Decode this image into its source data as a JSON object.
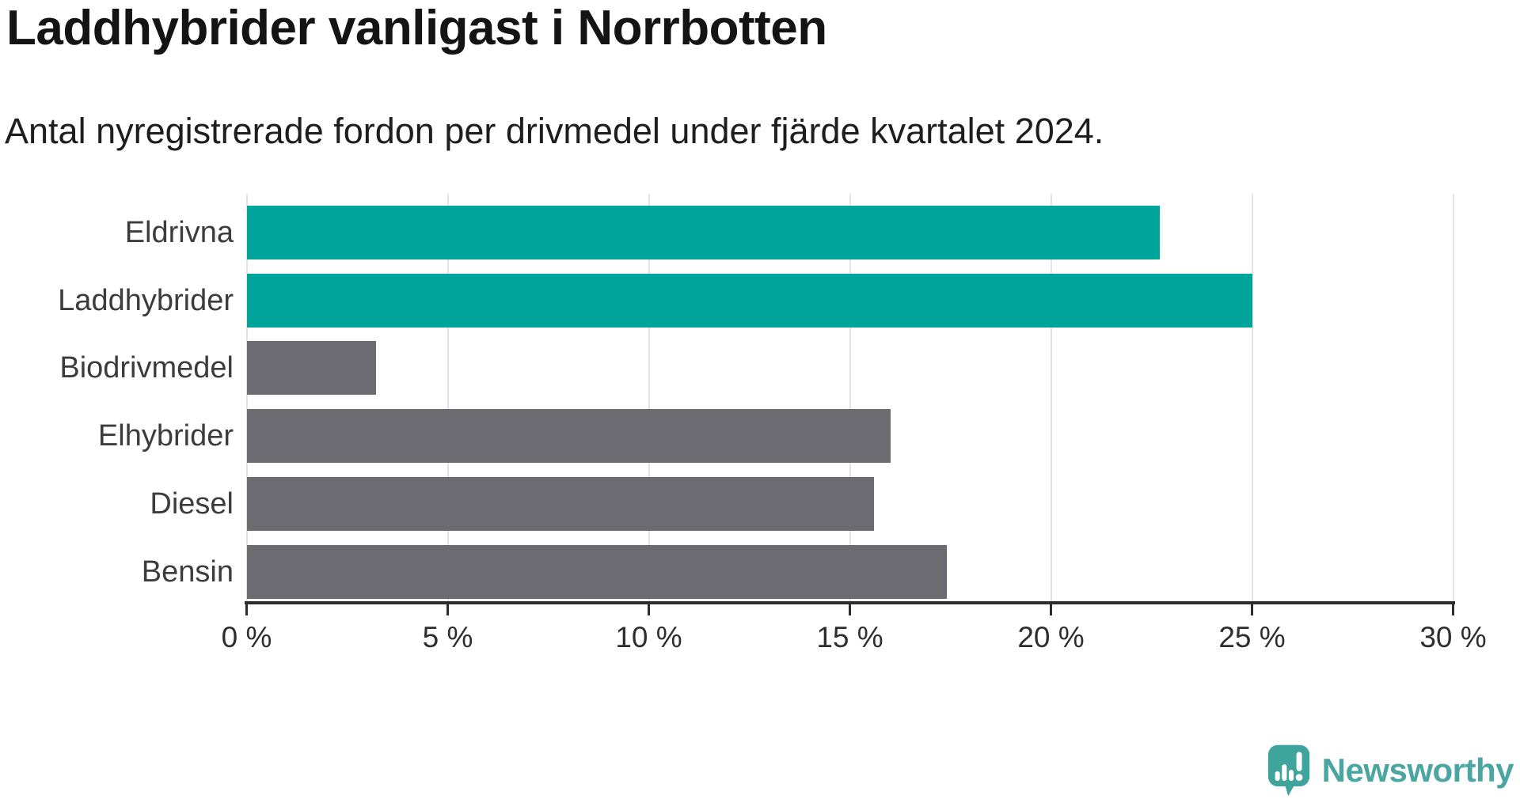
{
  "title": "Laddhybrider vanligast i Norrbotten",
  "subtitle": "Antal nyregistrerade fordon per drivmedel under fjärde kvartalet 2024.",
  "chart_data": {
    "type": "bar",
    "orientation": "horizontal",
    "title": "Laddhybrider vanligast i Norrbotten",
    "subtitle": "Antal nyregistrerade fordon per drivmedel under fjärde kvartalet 2024.",
    "categories": [
      "Eldrivna",
      "Laddhybrider",
      "Biodrivmedel",
      "Elhybrider",
      "Diesel",
      "Bensin"
    ],
    "values": [
      22.7,
      25.0,
      3.2,
      16.0,
      15.6,
      17.4
    ],
    "unit": "%",
    "highlighted": [
      true,
      true,
      false,
      false,
      false,
      false
    ],
    "xlim": [
      0,
      30
    ],
    "x_ticks": [
      0,
      5,
      10,
      15,
      20,
      25,
      30
    ],
    "x_tick_labels": [
      "0 %",
      "5 %",
      "10 %",
      "15 %",
      "20 %",
      "25 %",
      "30 %"
    ],
    "grid": "vertical-only",
    "legend": "none",
    "colors": {
      "highlight": "#00a49b",
      "default": "#6b6b71",
      "gridline": "#e4e4e4",
      "axis": "#2d2d2d"
    }
  },
  "branding": {
    "logo_text": "Newsworthy",
    "logo_icon": "newsworthy-bubble-barchart-icon",
    "logo_color": "#4ba5a0",
    "logo_icon_color": "#3fa49c"
  }
}
